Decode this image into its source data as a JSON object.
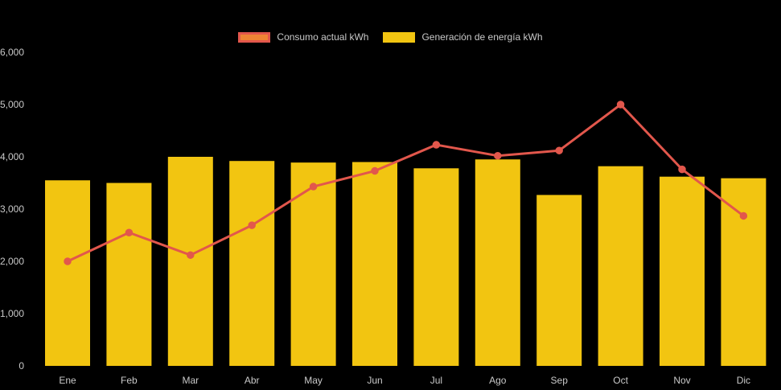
{
  "colors": {
    "background": "#000000",
    "bar": "#F2C511",
    "line": "#E2574C",
    "legend_line_fill": "#EE8434",
    "axis_text": "#c9c9c9",
    "legend_text": "#c9c9c9"
  },
  "chart_data": {
    "type": "bar",
    "title": "",
    "xlabel": "",
    "ylabel": "",
    "categories": [
      "Ene",
      "Feb",
      "Mar",
      "Abr",
      "May",
      "Jun",
      "Jul",
      "Ago",
      "Sep",
      "Oct",
      "Nov",
      "Dic"
    ],
    "series": [
      {
        "name": "Consumo actual kWh",
        "type": "line",
        "color": "#E2574C",
        "values": [
          2000,
          2550,
          2120,
          2690,
          3430,
          3730,
          4230,
          4020,
          4120,
          5000,
          3760,
          2870
        ]
      },
      {
        "name": "Generación de energía kWh",
        "type": "bar",
        "color": "#F2C511",
        "values": [
          3550,
          3500,
          4000,
          3920,
          3890,
          3900,
          3780,
          3950,
          3270,
          3820,
          3620,
          3590
        ]
      }
    ],
    "ylim": [
      0,
      6000
    ],
    "yticks": [
      0,
      1000,
      2000,
      3000,
      4000,
      5000,
      6000
    ],
    "ytick_labels": [
      "0",
      "1,000",
      "2,000",
      "3,000",
      "4,000",
      "5,000",
      "6,000"
    ],
    "grid": false,
    "legend_position": "top"
  }
}
